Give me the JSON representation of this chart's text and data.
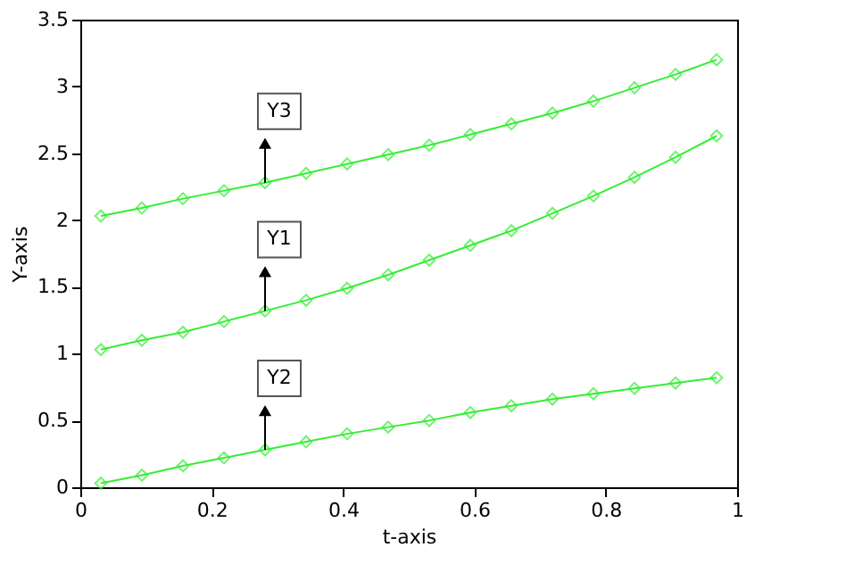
{
  "chart_data": {
    "type": "line",
    "xlabel": "t-axis",
    "ylabel": "Y-axis",
    "x": [
      0.03125,
      0.09375,
      0.15625,
      0.21875,
      0.28125,
      0.34375,
      0.40625,
      0.46875,
      0.53125,
      0.59375,
      0.65625,
      0.71875,
      0.78125,
      0.84375,
      0.90625,
      0.96875
    ],
    "series": [
      {
        "name": "Y3",
        "color": "#33ee33",
        "values": [
          2.03,
          2.09,
          2.16,
          2.22,
          2.28,
          2.35,
          2.42,
          2.49,
          2.56,
          2.64,
          2.72,
          2.8,
          2.89,
          2.99,
          3.09,
          3.2
        ]
      },
      {
        "name": "Y1",
        "color": "#33ee33",
        "values": [
          1.03,
          1.1,
          1.16,
          1.24,
          1.32,
          1.4,
          1.49,
          1.59,
          1.7,
          1.81,
          1.92,
          2.05,
          2.18,
          2.32,
          2.47,
          2.63
        ]
      },
      {
        "name": "Y2",
        "color": "#33ee33",
        "values": [
          0.03,
          0.09,
          0.16,
          0.22,
          0.28,
          0.34,
          0.4,
          0.45,
          0.5,
          0.56,
          0.61,
          0.66,
          0.7,
          0.74,
          0.78,
          0.82
        ]
      }
    ],
    "xlim": [
      0,
      1
    ],
    "xticks": [
      0,
      0.2,
      0.4,
      0.6,
      0.8,
      1
    ],
    "ylim": [
      0,
      3.5
    ],
    "yticks": [
      0,
      0.5,
      1,
      1.5,
      2,
      2.5,
      3,
      3.5
    ],
    "marker": "diamond",
    "line_style": "solid",
    "grid": false
  }
}
